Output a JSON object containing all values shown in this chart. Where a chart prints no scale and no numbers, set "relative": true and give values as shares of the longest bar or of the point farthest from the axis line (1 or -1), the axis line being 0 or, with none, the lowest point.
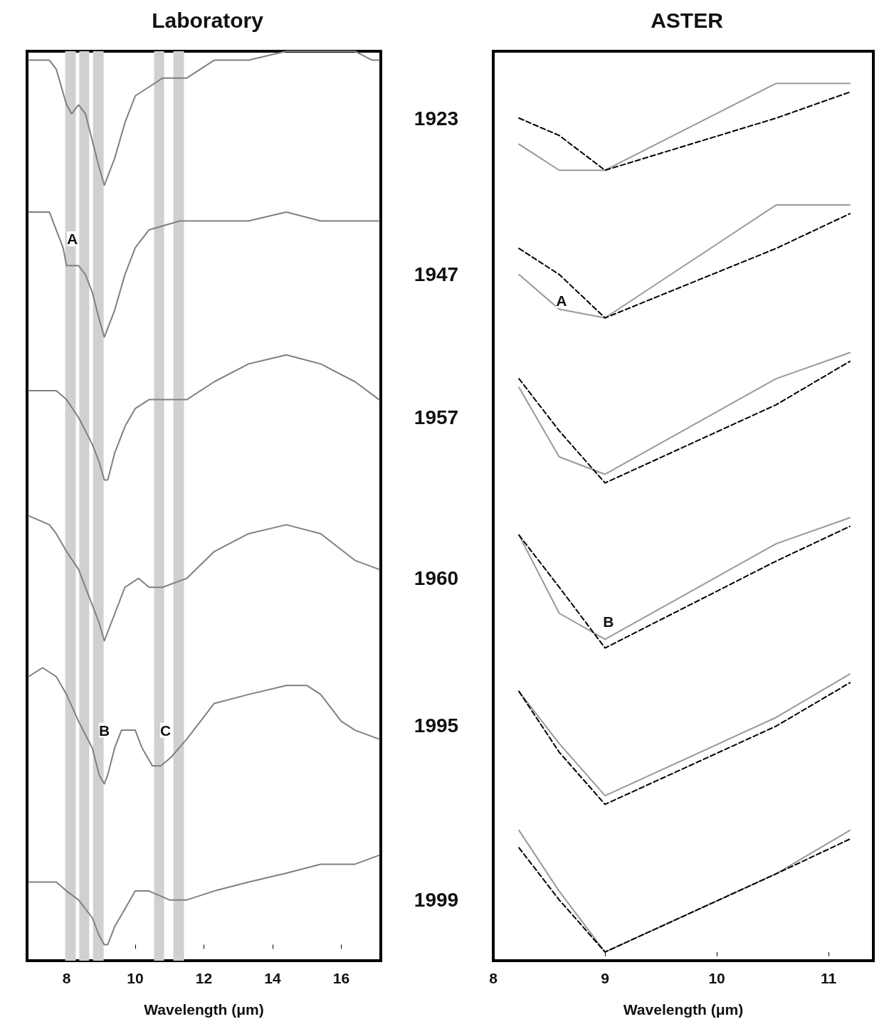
{
  "chart_data": [
    {
      "type": "line",
      "title": "Laboratory",
      "xlabel": "Wavelength (μm)",
      "relative": true,
      "xlim": [
        6.85,
        17.15
      ],
      "xticks": [
        8,
        10,
        12,
        14,
        16
      ],
      "grid": false,
      "legend": false,
      "marker": "none",
      "line_style": "solid",
      "bands": [
        {
          "axis": "x",
          "from": 7.96,
          "to": 8.27,
          "color": "#d0d0d0"
        },
        {
          "axis": "x",
          "from": 8.37,
          "to": 8.66,
          "color": "#d0d0d0"
        },
        {
          "axis": "x",
          "from": 8.77,
          "to": 9.08,
          "color": "#d0d0d0"
        },
        {
          "axis": "x",
          "from": 10.55,
          "to": 10.84,
          "color": "#d0d0d0"
        },
        {
          "axis": "x",
          "from": 11.11,
          "to": 11.42,
          "color": "#d0d0d0"
        }
      ],
      "annotations": [
        {
          "text": "A",
          "x": 8.17,
          "y": 0.79
        },
        {
          "text": "B",
          "x": 9.1,
          "y": 0.24
        },
        {
          "text": "C",
          "x": 10.88,
          "y": 0.24
        }
      ],
      "series": [
        {
          "name": "1923",
          "color": "#808080",
          "x": [
            6.9,
            7.3,
            7.5,
            7.7,
            8.0,
            8.15,
            8.35,
            8.55,
            8.75,
            8.95,
            9.1,
            9.2,
            9.4,
            9.7,
            10.0,
            10.4,
            10.8,
            11.5,
            12.3,
            13.3,
            14.4,
            15.4,
            16.4,
            16.9,
            17.1
          ],
          "values": [
            0.99,
            0.99,
            0.99,
            0.98,
            0.94,
            0.93,
            0.94,
            0.93,
            0.9,
            0.87,
            0.85,
            0.86,
            0.88,
            0.92,
            0.95,
            0.96,
            0.97,
            0.97,
            0.99,
            0.99,
            1.0,
            1.0,
            1.0,
            0.99,
            0.99
          ]
        },
        {
          "name": "1947",
          "color": "#808080",
          "x": [
            6.9,
            7.5,
            7.7,
            7.9,
            8.0,
            8.15,
            8.35,
            8.55,
            8.75,
            8.95,
            9.1,
            9.2,
            9.4,
            9.7,
            10.0,
            10.4,
            11.3,
            12.3,
            13.3,
            14.4,
            15.4,
            16.4,
            17.1
          ],
          "values": [
            0.82,
            0.82,
            0.8,
            0.78,
            0.76,
            0.76,
            0.76,
            0.75,
            0.73,
            0.7,
            0.68,
            0.69,
            0.71,
            0.75,
            0.78,
            0.8,
            0.81,
            0.81,
            0.81,
            0.82,
            0.81,
            0.81,
            0.81
          ]
        },
        {
          "name": "1957",
          "color": "#808080",
          "x": [
            6.9,
            7.7,
            8.0,
            8.35,
            8.75,
            8.95,
            9.1,
            9.2,
            9.4,
            9.7,
            10.0,
            10.4,
            10.8,
            11.5,
            12.3,
            13.3,
            14.4,
            15.4,
            16.4,
            17.1
          ],
          "values": [
            0.62,
            0.62,
            0.61,
            0.59,
            0.56,
            0.54,
            0.52,
            0.52,
            0.55,
            0.58,
            0.6,
            0.61,
            0.61,
            0.61,
            0.63,
            0.65,
            0.66,
            0.65,
            0.63,
            0.61
          ]
        },
        {
          "name": "1960",
          "color": "#808080",
          "x": [
            6.9,
            7.5,
            7.7,
            8.0,
            8.35,
            8.75,
            8.95,
            9.1,
            9.2,
            9.4,
            9.7,
            10.1,
            10.4,
            10.8,
            11.5,
            12.3,
            13.3,
            14.4,
            15.4,
            16.4,
            17.1
          ],
          "values": [
            0.48,
            0.47,
            0.46,
            0.44,
            0.42,
            0.38,
            0.36,
            0.34,
            0.35,
            0.37,
            0.4,
            0.41,
            0.4,
            0.4,
            0.41,
            0.44,
            0.46,
            0.47,
            0.46,
            0.43,
            0.42
          ]
        },
        {
          "name": "1995",
          "color": "#808080",
          "x": [
            6.9,
            7.3,
            7.7,
            8.0,
            8.35,
            8.75,
            8.95,
            9.1,
            9.2,
            9.4,
            9.6,
            9.8,
            10.0,
            10.2,
            10.5,
            10.75,
            11.05,
            11.5,
            11.9,
            12.3,
            13.3,
            14.4,
            15.0,
            15.4,
            16.0,
            16.4,
            17.1
          ],
          "values": [
            0.3,
            0.31,
            0.3,
            0.28,
            0.25,
            0.22,
            0.19,
            0.18,
            0.19,
            0.22,
            0.24,
            0.24,
            0.24,
            0.22,
            0.2,
            0.2,
            0.21,
            0.23,
            0.25,
            0.27,
            0.28,
            0.29,
            0.29,
            0.28,
            0.25,
            0.24,
            0.23
          ]
        },
        {
          "name": "1999",
          "color": "#808080",
          "x": [
            6.9,
            7.7,
            8.0,
            8.35,
            8.75,
            8.95,
            9.1,
            9.2,
            9.4,
            9.7,
            10.0,
            10.4,
            11.0,
            11.5,
            12.3,
            13.3,
            14.4,
            15.4,
            16.4,
            17.1
          ],
          "values": [
            0.07,
            0.07,
            0.06,
            0.05,
            0.03,
            0.01,
            0.0,
            0.0,
            0.02,
            0.04,
            0.06,
            0.06,
            0.05,
            0.05,
            0.06,
            0.07,
            0.08,
            0.09,
            0.09,
            0.1
          ]
        }
      ]
    },
    {
      "type": "line",
      "title": "ASTER",
      "xlabel": "Wavelength (μm)",
      "relative": true,
      "xlim": [
        8,
        11.4
      ],
      "xticks": [
        8,
        9,
        10,
        11
      ],
      "grid": false,
      "legend": false,
      "marker": "none",
      "annotations": [
        {
          "text": "A",
          "x": 8.61,
          "y": 0.75
        },
        {
          "text": "B",
          "x": 9.03,
          "y": 0.38
        }
      ],
      "series": [
        {
          "color": "#999999",
          "line_style": "solid",
          "x": [
            8.23,
            8.59,
            9.0,
            10.53,
            11.19
          ],
          "values": [
            0.93,
            0.9,
            0.9,
            1.0,
            1.0
          ]
        },
        {
          "color": "#000000",
          "line_style": "dashed",
          "x": [
            8.23,
            8.59,
            9.0,
            10.53,
            11.19
          ],
          "values": [
            0.96,
            0.94,
            0.9,
            0.96,
            0.99
          ]
        },
        {
          "color": "#999999",
          "line_style": "solid",
          "x": [
            8.23,
            8.59,
            9.0,
            10.53,
            11.19
          ],
          "values": [
            0.78,
            0.74,
            0.73,
            0.86,
            0.86
          ]
        },
        {
          "color": "#000000",
          "line_style": "dashed",
          "x": [
            8.23,
            8.59,
            9.0,
            10.53,
            11.19
          ],
          "values": [
            0.81,
            0.78,
            0.73,
            0.81,
            0.85
          ]
        },
        {
          "color": "#999999",
          "line_style": "solid",
          "x": [
            8.23,
            8.59,
            9.0,
            10.53,
            11.19
          ],
          "values": [
            0.65,
            0.57,
            0.55,
            0.66,
            0.69
          ]
        },
        {
          "color": "#000000",
          "line_style": "dashed",
          "x": [
            8.23,
            8.59,
            9.0,
            10.53,
            11.19
          ],
          "values": [
            0.66,
            0.6,
            0.54,
            0.63,
            0.68
          ]
        },
        {
          "color": "#999999",
          "line_style": "solid",
          "x": [
            8.23,
            8.59,
            9.0,
            10.53,
            11.19
          ],
          "values": [
            0.48,
            0.39,
            0.36,
            0.47,
            0.5
          ]
        },
        {
          "color": "#000000",
          "line_style": "dashed",
          "x": [
            8.23,
            8.59,
            9.0,
            10.53,
            11.19
          ],
          "values": [
            0.48,
            0.42,
            0.35,
            0.45,
            0.49
          ]
        },
        {
          "color": "#999999",
          "line_style": "solid",
          "x": [
            8.23,
            8.59,
            9.0,
            10.53,
            11.19
          ],
          "values": [
            0.3,
            0.24,
            0.18,
            0.27,
            0.32
          ]
        },
        {
          "color": "#000000",
          "line_style": "dashed",
          "x": [
            8.23,
            8.59,
            9.0,
            10.53,
            11.19
          ],
          "values": [
            0.3,
            0.23,
            0.17,
            0.26,
            0.31
          ]
        },
        {
          "color": "#999999",
          "line_style": "solid",
          "x": [
            8.23,
            8.59,
            9.0,
            10.53,
            11.19
          ],
          "values": [
            0.14,
            0.07,
            0.0,
            0.09,
            0.14
          ]
        },
        {
          "color": "#000000",
          "line_style": "dashed",
          "x": [
            8.23,
            8.59,
            9.0,
            10.53,
            11.19
          ],
          "values": [
            0.12,
            0.06,
            0.0,
            0.09,
            0.13
          ]
        }
      ]
    }
  ]
}
